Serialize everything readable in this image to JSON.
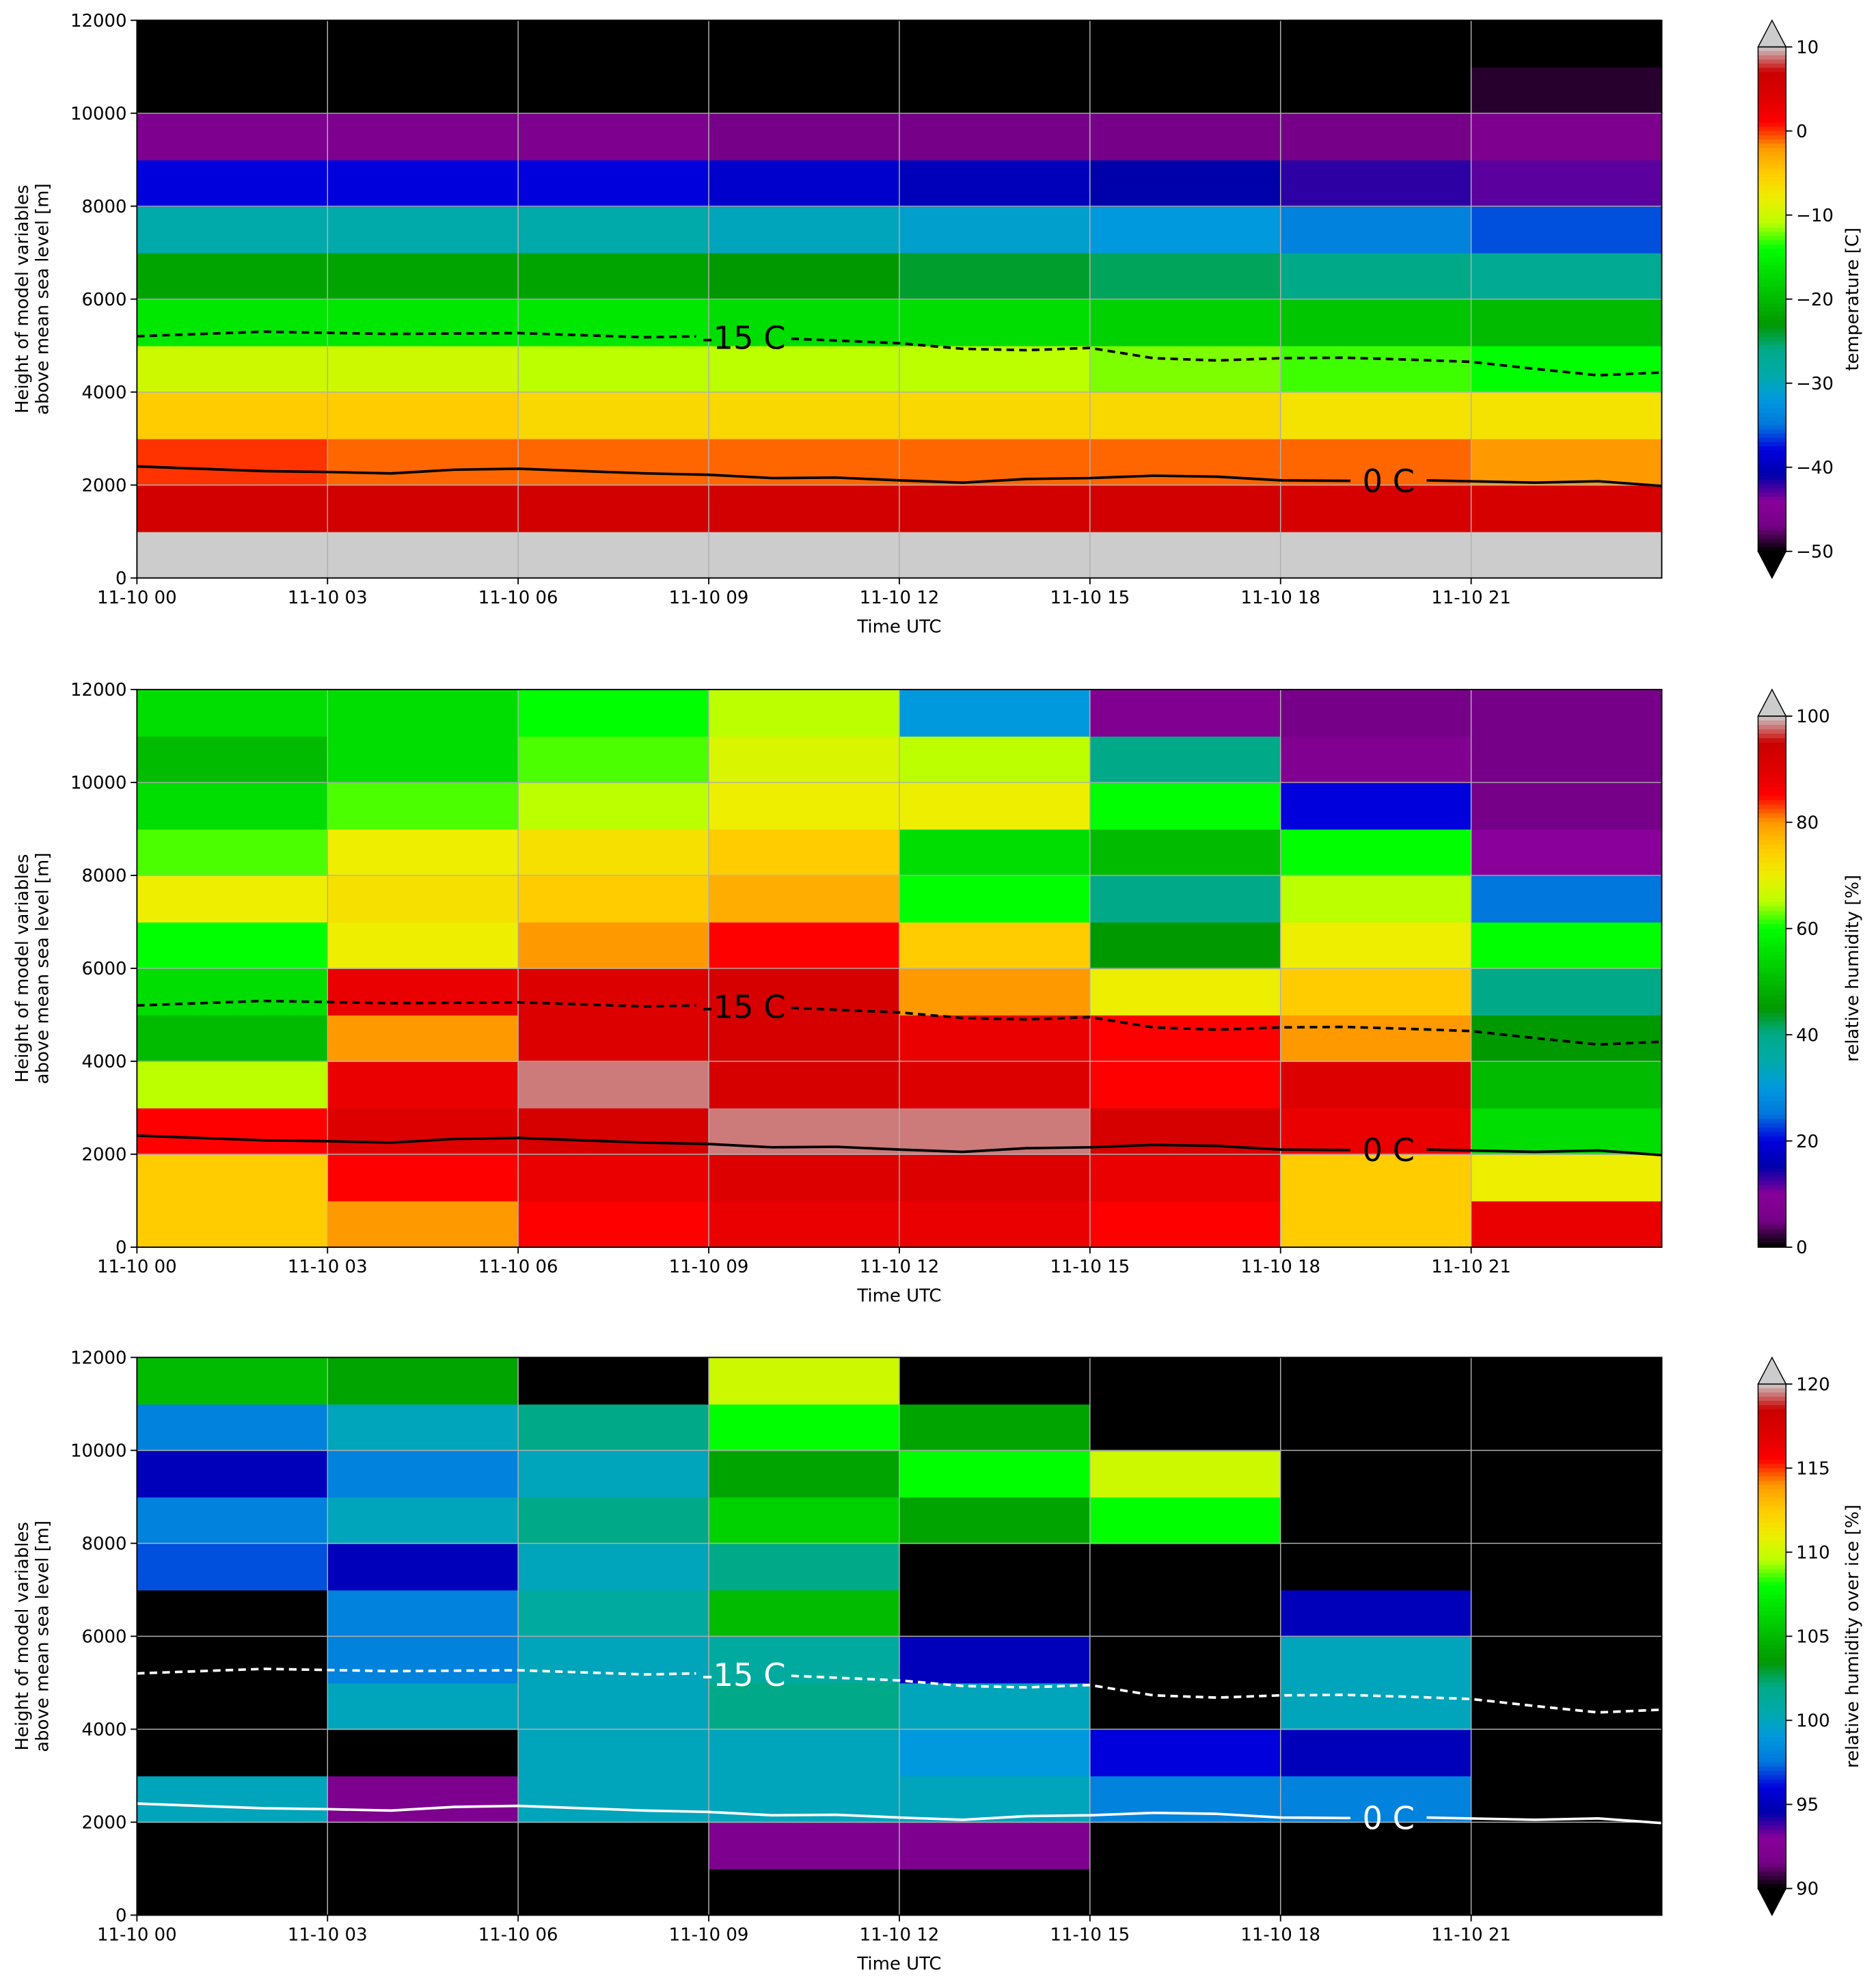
{
  "chart_data": [
    {
      "type": "heatmap",
      "xlabel": "Time UTC",
      "ylabel": [
        "Height of model variables",
        "above mean sea level [m]"
      ],
      "clabel": "temperature [C]",
      "extend": "both",
      "xlim": [
        0,
        24
      ],
      "ylim": [
        0,
        12000
      ],
      "xticks": [
        {
          "value": 0,
          "label": "11-10 00"
        },
        {
          "value": 3,
          "label": "11-10 03"
        },
        {
          "value": 6,
          "label": "11-10 06"
        },
        {
          "value": 9,
          "label": "11-10 09"
        },
        {
          "value": 12,
          "label": "11-10 12"
        },
        {
          "value": 15,
          "label": "11-10 15"
        },
        {
          "value": 18,
          "label": "11-10 18"
        },
        {
          "value": 21,
          "label": "11-10 21"
        }
      ],
      "yticks": [
        0,
        2000,
        4000,
        6000,
        8000,
        10000,
        12000
      ],
      "grid": true,
      "clim": [
        -50,
        10
      ],
      "cticks": [
        {
          "value": -50,
          "label": "−50"
        },
        {
          "value": -40,
          "label": "−40"
        },
        {
          "value": -30,
          "label": "−30"
        },
        {
          "value": -20,
          "label": "−20"
        },
        {
          "value": -10,
          "label": "−10"
        },
        0,
        10
      ],
      "x": [
        1.5,
        4.5,
        7.5,
        10.5,
        13.5,
        16.5,
        19.5,
        22.5
      ],
      "y": [
        500,
        1500,
        2500,
        3500,
        4500,
        5500,
        6500,
        7500,
        8500,
        9500,
        10500,
        11500
      ],
      "z": [
        [
          11,
          11,
          11,
          11,
          11,
          11,
          11,
          10
        ],
        [
          6,
          6,
          6,
          6,
          6,
          6,
          5,
          5
        ],
        [
          0,
          -1,
          -1,
          -1,
          -1,
          -1,
          -1,
          -2
        ],
        [
          -5,
          -5,
          -6,
          -6,
          -6,
          -6,
          -7,
          -7
        ],
        [
          -10,
          -10,
          -11,
          -11,
          -11,
          -12,
          -13,
          -14
        ],
        [
          -16,
          -16,
          -16,
          -17,
          -17,
          -18,
          -19,
          -20
        ],
        [
          -22,
          -22,
          -22,
          -23,
          -24,
          -25,
          -26,
          -27
        ],
        [
          -29,
          -29,
          -29,
          -30,
          -31,
          -32,
          -34,
          -36
        ],
        [
          -38,
          -38,
          -38,
          -39,
          -40,
          -41,
          -42,
          -43
        ],
        [
          -46,
          -46,
          -46,
          -47,
          -47,
          -47,
          -47,
          -46
        ],
        [
          -54,
          -54,
          -54,
          -54,
          -54,
          -54,
          -53,
          -49
        ],
        [
          -58,
          -58,
          -58,
          -58,
          -58,
          -58,
          -58,
          -56
        ]
      ],
      "contour_color": "#000000",
      "contours": [
        {
          "label": "-15 C",
          "style": "dashed",
          "x": [
            0,
            2,
            4,
            6,
            8,
            8.8,
            null,
            10.3,
            12,
            13,
            14,
            15,
            16,
            17,
            18,
            19,
            20,
            21,
            22,
            23,
            24
          ],
          "y": [
            5200,
            5300,
            5250,
            5270,
            5180,
            5200,
            null,
            5150,
            5050,
            4930,
            4900,
            4950,
            4730,
            4680,
            4730,
            4740,
            4700,
            4650,
            4500,
            4360,
            4420
          ]
        },
        {
          "label": "0 C",
          "style": "solid",
          "x": [
            0,
            2,
            3,
            4,
            5,
            6,
            8,
            9,
            10,
            11,
            12,
            13,
            14,
            15,
            16,
            17,
            18,
            19.1,
            null,
            20.3,
            22,
            23,
            24
          ],
          "y": [
            2400,
            2300,
            2280,
            2250,
            2330,
            2350,
            2250,
            2220,
            2150,
            2160,
            2100,
            2050,
            2130,
            2150,
            2200,
            2180,
            2100,
            2090,
            null,
            2100,
            2050,
            2080,
            1980
          ]
        }
      ]
    },
    {
      "type": "heatmap",
      "xlabel": "Time UTC",
      "ylabel": [
        "Height of model variables",
        "above mean sea level [m]"
      ],
      "clabel": "relative humidity [%]",
      "extend": "max",
      "xlim": [
        0,
        24
      ],
      "ylim": [
        0,
        12000
      ],
      "xticks": [
        {
          "value": 0,
          "label": "11-10 00"
        },
        {
          "value": 3,
          "label": "11-10 03"
        },
        {
          "value": 6,
          "label": "11-10 06"
        },
        {
          "value": 9,
          "label": "11-10 09"
        },
        {
          "value": 12,
          "label": "11-10 12"
        },
        {
          "value": 15,
          "label": "11-10 15"
        },
        {
          "value": 18,
          "label": "11-10 18"
        },
        {
          "value": 21,
          "label": "11-10 21"
        }
      ],
      "yticks": [
        0,
        2000,
        4000,
        6000,
        8000,
        10000,
        12000
      ],
      "grid": true,
      "clim": [
        0,
        100
      ],
      "cticks": [
        0,
        20,
        40,
        60,
        80,
        100
      ],
      "x": [
        1.5,
        4.5,
        7.5,
        10.5,
        13.5,
        16.5,
        19.5,
        22.5
      ],
      "y": [
        500,
        1500,
        2500,
        3500,
        4500,
        5500,
        6500,
        7500,
        8500,
        9500,
        10500,
        11500
      ],
      "z": [
        [
          75,
          80,
          85,
          88,
          88,
          85,
          75,
          88
        ],
        [
          75,
          85,
          88,
          90,
          90,
          88,
          75,
          70
        ],
        [
          85,
          90,
          92,
          98,
          98,
          92,
          88,
          55
        ],
        [
          65,
          88,
          98,
          92,
          90,
          85,
          90,
          50
        ],
        [
          50,
          80,
          90,
          92,
          88,
          85,
          80,
          45
        ],
        [
          55,
          88,
          90,
          92,
          80,
          70,
          75,
          40
        ],
        [
          60,
          70,
          80,
          85,
          75,
          45,
          70,
          60
        ],
        [
          70,
          72,
          75,
          78,
          60,
          40,
          65,
          25
        ],
        [
          62,
          70,
          72,
          75,
          55,
          50,
          60,
          10
        ],
        [
          55,
          62,
          65,
          70,
          70,
          60,
          20,
          5
        ],
        [
          50,
          55,
          62,
          68,
          65,
          40,
          8,
          5
        ],
        [
          55,
          55,
          60,
          65,
          30,
          8,
          5,
          5
        ]
      ],
      "contour_color": "#000000",
      "contours": [
        {
          "label": "-15 C",
          "style": "dashed",
          "x": [
            0,
            2,
            4,
            6,
            8,
            8.8,
            null,
            10.3,
            12,
            13,
            14,
            15,
            16,
            17,
            18,
            19,
            20,
            21,
            22,
            23,
            24
          ],
          "y": [
            5200,
            5300,
            5250,
            5270,
            5180,
            5200,
            null,
            5150,
            5050,
            4930,
            4900,
            4950,
            4730,
            4680,
            4730,
            4740,
            4700,
            4650,
            4500,
            4360,
            4420
          ]
        },
        {
          "label": "0 C",
          "style": "solid",
          "x": [
            0,
            2,
            3,
            4,
            5,
            6,
            8,
            9,
            10,
            11,
            12,
            13,
            14,
            15,
            16,
            17,
            18,
            19.1,
            null,
            20.3,
            22,
            23,
            24
          ],
          "y": [
            2400,
            2300,
            2280,
            2250,
            2330,
            2350,
            2250,
            2220,
            2150,
            2160,
            2100,
            2050,
            2130,
            2150,
            2200,
            2180,
            2100,
            2090,
            null,
            2100,
            2050,
            2080,
            1980
          ]
        }
      ]
    },
    {
      "type": "heatmap",
      "xlabel": "Time UTC",
      "ylabel": [
        "Height of model variables",
        "above mean sea level [m]"
      ],
      "clabel": "relative humidity over ice [%]",
      "extend": "both",
      "xlim": [
        0,
        24
      ],
      "ylim": [
        0,
        12000
      ],
      "xticks": [
        {
          "value": 0,
          "label": "11-10 00"
        },
        {
          "value": 3,
          "label": "11-10 03"
        },
        {
          "value": 6,
          "label": "11-10 06"
        },
        {
          "value": 9,
          "label": "11-10 09"
        },
        {
          "value": 12,
          "label": "11-10 12"
        },
        {
          "value": 15,
          "label": "11-10 15"
        },
        {
          "value": 18,
          "label": "11-10 18"
        },
        {
          "value": 21,
          "label": "11-10 21"
        }
      ],
      "yticks": [
        0,
        2000,
        4000,
        6000,
        8000,
        10000,
        12000
      ],
      "grid": true,
      "clim": [
        90,
        120
      ],
      "cticks": [
        90,
        95,
        100,
        105,
        110,
        115,
        120
      ],
      "x": [
        1.5,
        4.5,
        7.5,
        10.5,
        13.5,
        16.5,
        19.5,
        22.5
      ],
      "y": [
        500,
        1500,
        2500,
        3500,
        4500,
        5500,
        6500,
        7500,
        8500,
        9500,
        10500,
        11500
      ],
      "z": [
        [
          85,
          85,
          85,
          85,
          85,
          85,
          85,
          85
        ],
        [
          85,
          85,
          88,
          92,
          92,
          90,
          85,
          85
        ],
        [
          100,
          92,
          100,
          100,
          100,
          98,
          98,
          85
        ],
        [
          85,
          85,
          100,
          100,
          99,
          96,
          95,
          85
        ],
        [
          85,
          100,
          100,
          102,
          100,
          85,
          100,
          85
        ],
        [
          85,
          98,
          100,
          101,
          95,
          85,
          100,
          85
        ],
        [
          85,
          98,
          101,
          105,
          85,
          85,
          95,
          85
        ],
        [
          97,
          95,
          100,
          102,
          85,
          85,
          85,
          85
        ],
        [
          98,
          100,
          102,
          106,
          104,
          108,
          85,
          85
        ],
        [
          95,
          98,
          100,
          104,
          108,
          110,
          85,
          85
        ],
        [
          98,
          100,
          102,
          108,
          104,
          85,
          85,
          85
        ],
        [
          105,
          104,
          85,
          110,
          85,
          85,
          85,
          85
        ]
      ],
      "contour_color": "#ffffff",
      "contours": [
        {
          "label": "-15 C",
          "style": "dashed",
          "x": [
            0,
            2,
            4,
            6,
            8,
            8.8,
            null,
            10.3,
            12,
            13,
            14,
            15,
            16,
            17,
            18,
            19,
            20,
            21,
            22,
            23,
            24
          ],
          "y": [
            5200,
            5300,
            5250,
            5270,
            5180,
            5200,
            null,
            5150,
            5050,
            4930,
            4900,
            4950,
            4730,
            4680,
            4730,
            4740,
            4700,
            4650,
            4500,
            4360,
            4420
          ]
        },
        {
          "label": "0 C",
          "style": "solid",
          "x": [
            0,
            2,
            3,
            4,
            5,
            6,
            8,
            9,
            10,
            11,
            12,
            13,
            14,
            15,
            16,
            17,
            18,
            19.1,
            null,
            20.3,
            22,
            23,
            24
          ],
          "y": [
            2400,
            2300,
            2280,
            2250,
            2330,
            2350,
            2250,
            2220,
            2150,
            2160,
            2100,
            2050,
            2130,
            2150,
            2200,
            2180,
            2100,
            2090,
            null,
            2100,
            2050,
            2080,
            1980
          ]
        }
      ]
    }
  ]
}
